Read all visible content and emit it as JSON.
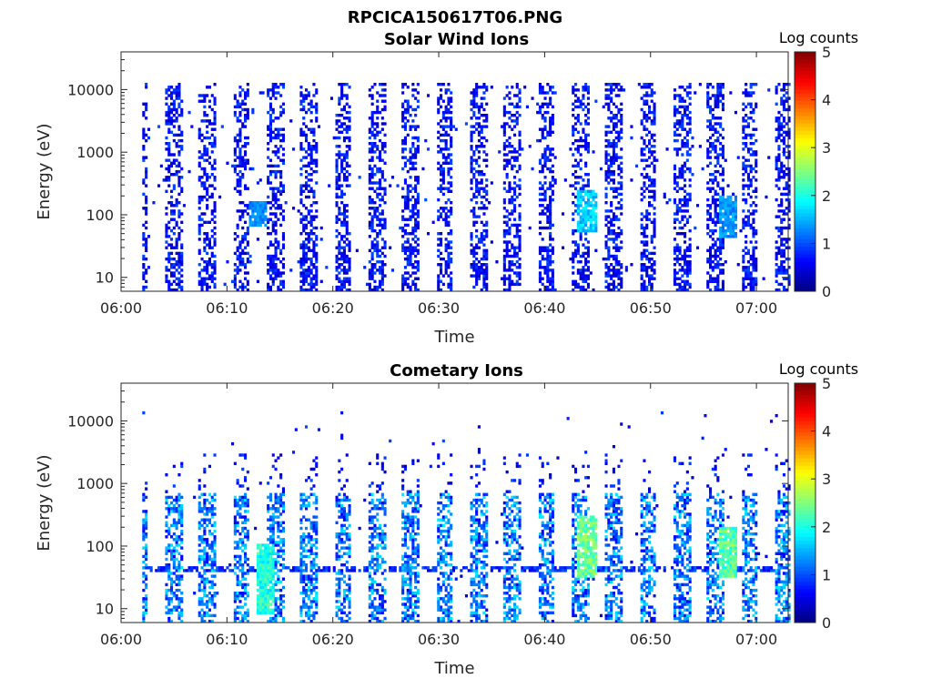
{
  "figure": {
    "title": "RPCICA150617T06.PNG"
  },
  "chart_data": [
    {
      "type": "heatmap",
      "title": "Solar Wind Ions",
      "xlabel": "Time",
      "ylabel": "Energy (eV)",
      "x_ticks": [
        "06:00",
        "06:10",
        "06:20",
        "06:30",
        "06:40",
        "06:50",
        "07:00"
      ],
      "y_ticks": [
        "10",
        "100",
        "1000",
        "10000"
      ],
      "y_scale": "log",
      "ylim": [
        6,
        40000
      ],
      "xlim": [
        "06:00",
        "07:03"
      ],
      "colorbar": {
        "label": "Log counts",
        "ticks": [
          "0",
          "1",
          "2",
          "3",
          "4",
          "5"
        ],
        "range": [
          0,
          5
        ],
        "colormap": "jet"
      },
      "pattern": {
        "description_in_data_units": "periodic energy sweeps roughly every 3.2 minutes from 06:02 to 07:03",
        "sweep_period_min": 3.2,
        "first_sweep_min": 4.4,
        "energy_range_eV": [
          6,
          12000
        ],
        "typical_log_counts": [
          0.2,
          1.2
        ],
        "peak_events": [
          {
            "time_min": 43.9,
            "energy_eV": [
              50,
              250
            ],
            "log_counts": 1.9
          },
          {
            "time_min": 57.2,
            "energy_eV": [
              40,
              200
            ],
            "log_counts": 1.6
          },
          {
            "time_min": 12.8,
            "energy_eV": [
              60,
              150
            ],
            "log_counts": 1.5
          }
        ]
      }
    },
    {
      "type": "heatmap",
      "title": "Cometary Ions",
      "xlabel": "Time",
      "ylabel": "Energy (eV)",
      "x_ticks": [
        "06:00",
        "06:10",
        "06:20",
        "06:30",
        "06:40",
        "06:50",
        "07:00"
      ],
      "y_ticks": [
        "10",
        "100",
        "1000",
        "10000"
      ],
      "y_scale": "log",
      "ylim": [
        6,
        40000
      ],
      "xlim": [
        "06:00",
        "07:03"
      ],
      "colorbar": {
        "label": "Log counts",
        "ticks": [
          "0",
          "1",
          "2",
          "3",
          "4",
          "5"
        ],
        "range": [
          0,
          5
        ],
        "colormap": "jet"
      },
      "pattern": {
        "description_in_data_units": "periodic sweeps with main population 10-600 eV, persistent band near 40 eV",
        "sweep_period_min": 3.2,
        "first_sweep_min": 4.4,
        "energy_range_eV": [
          6,
          800
        ],
        "band_energy_eV": 40,
        "typical_log_counts": [
          0.5,
          2.0
        ],
        "peak_events": [
          {
            "time_min": 43.9,
            "energy_eV": [
              30,
              300
            ],
            "log_counts": 2.8
          },
          {
            "time_min": 57.2,
            "energy_eV": [
              30,
              200
            ],
            "log_counts": 2.7
          },
          {
            "time_min": 13.5,
            "energy_eV": [
              8,
              100
            ],
            "log_counts": 2.4
          }
        ]
      }
    }
  ]
}
